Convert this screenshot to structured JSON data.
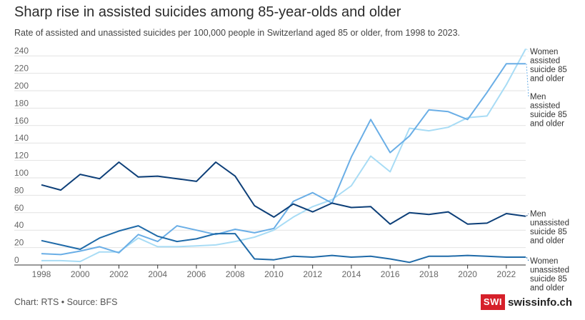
{
  "header": {
    "title": "Sharp rise in assisted suicides among 85-year-olds and older",
    "subtitle": "Rate of assisted and unassisted suicides per 100,000 people in Switzerland aged 85 or older, from 1998 to 2023."
  },
  "footer": {
    "source": "Chart: RTS • Source: BFS",
    "logo_mark": "SWI",
    "logo_text": "swissinfo.ch"
  },
  "chart_data": {
    "type": "line",
    "x": [
      1998,
      1999,
      2000,
      2001,
      2002,
      2003,
      2004,
      2005,
      2006,
      2007,
      2008,
      2009,
      2010,
      2011,
      2012,
      2013,
      2014,
      2015,
      2016,
      2017,
      2018,
      2019,
      2020,
      2021,
      2022,
      2023
    ],
    "ylim": [
      0,
      250
    ],
    "yticks": [
      0,
      20,
      40,
      60,
      80,
      100,
      120,
      140,
      160,
      180,
      200,
      220,
      240
    ],
    "xticks": [
      1998,
      2000,
      2002,
      2004,
      2006,
      2008,
      2010,
      2012,
      2014,
      2016,
      2018,
      2020,
      2022
    ],
    "grid": true,
    "series": [
      {
        "name": "Women assisted suicide 85 and older",
        "color": "#a8dcf5",
        "values": [
          5,
          5,
          4,
          15,
          15,
          31,
          21,
          21,
          22,
          23,
          27,
          32,
          40,
          55,
          67,
          75,
          91,
          125,
          107,
          157,
          154,
          158,
          169,
          171,
          207,
          248
        ]
      },
      {
        "name": "Men assisted suicide 85 and older",
        "color": "#6aaee6",
        "values": [
          13,
          12,
          16,
          21,
          14,
          35,
          27,
          45,
          40,
          35,
          41,
          37,
          42,
          73,
          83,
          71,
          124,
          167,
          129,
          148,
          178,
          176,
          167,
          198,
          231,
          231
        ]
      },
      {
        "name": "Men unassisted suicide 85 and older",
        "color": "#0d3f78",
        "values": [
          92,
          86,
          104,
          99,
          118,
          101,
          102,
          99,
          96,
          118,
          102,
          68,
          55,
          70,
          61,
          71,
          66,
          67,
          47,
          60,
          58,
          61,
          47,
          48,
          59,
          56
        ]
      },
      {
        "name": "Women unassisted suicide 85 and older",
        "color": "#1f6aa8",
        "values": [
          28,
          23,
          18,
          31,
          39,
          45,
          33,
          27,
          30,
          36,
          36,
          7,
          6,
          10,
          9,
          11,
          9,
          10,
          7,
          3,
          10,
          10,
          11,
          10,
          9,
          9
        ]
      }
    ],
    "end_labels": [
      {
        "lines": [
          "Women",
          "assisted",
          "suicide 85",
          "and older"
        ]
      },
      {
        "lines": [
          "Men",
          "assisted",
          "suicide 85",
          "and older"
        ]
      },
      {
        "lines": [
          "Men",
          "unassisted",
          "suicide 85",
          "and older"
        ]
      },
      {
        "lines": [
          "Women",
          "unassisted",
          "suicide 85",
          "and older"
        ]
      }
    ]
  }
}
